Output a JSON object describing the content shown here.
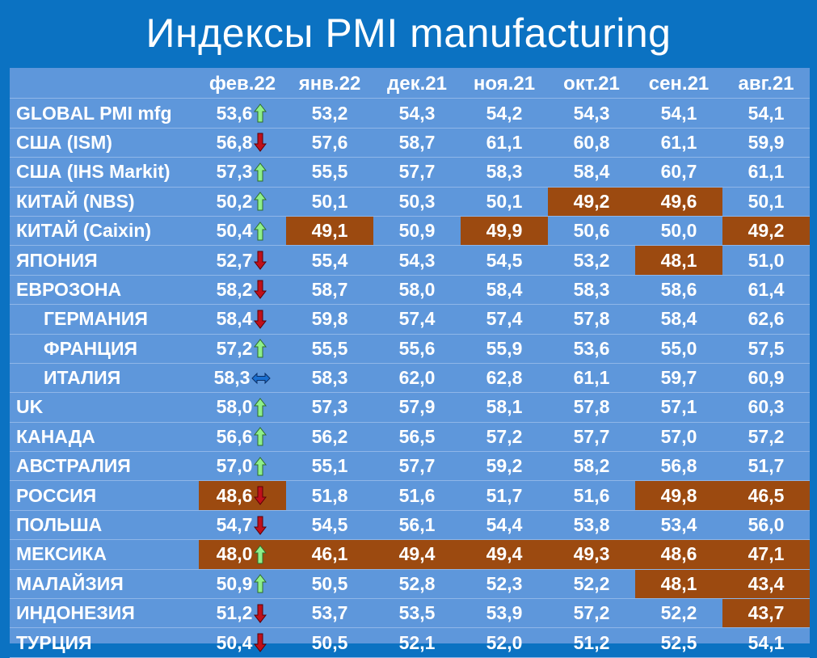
{
  "title": "Индексы PMI manufacturing",
  "colors": {
    "background": "#0b72c2",
    "panel": "#5e97db",
    "highlight": "#9c4a10",
    "up": "#8ef08a",
    "down": "#c0101a",
    "flat": "#1a6fd0"
  },
  "chart_data": {
    "type": "table",
    "title": "Индексы PMI manufacturing",
    "columns": [
      "фев.22",
      "янв.22",
      "дек.21",
      "ноя.21",
      "окт.21",
      "сен.21",
      "авг.21"
    ],
    "rows": [
      {
        "name": "GLOBAL PMI mfg",
        "indent": false,
        "trend": "up",
        "values": [
          "53,6",
          "53,2",
          "54,3",
          "54,2",
          "54,3",
          "54,1",
          "54,1"
        ],
        "highlight": [
          false,
          false,
          false,
          false,
          false,
          false,
          false
        ]
      },
      {
        "name": "США (ISM)",
        "indent": false,
        "trend": "down",
        "values": [
          "56,8",
          "57,6",
          "58,7",
          "61,1",
          "60,8",
          "61,1",
          "59,9"
        ],
        "highlight": [
          false,
          false,
          false,
          false,
          false,
          false,
          false
        ]
      },
      {
        "name": "США (IHS Markit)",
        "indent": false,
        "trend": "up",
        "values": [
          "57,3",
          "55,5",
          "57,7",
          "58,3",
          "58,4",
          "60,7",
          "61,1"
        ],
        "highlight": [
          false,
          false,
          false,
          false,
          false,
          false,
          false
        ]
      },
      {
        "name": "КИТАЙ (NBS)",
        "indent": false,
        "trend": "up",
        "values": [
          "50,2",
          "50,1",
          "50,3",
          "50,1",
          "49,2",
          "49,6",
          "50,1"
        ],
        "highlight": [
          false,
          false,
          false,
          false,
          true,
          true,
          false
        ]
      },
      {
        "name": "КИТАЙ (Caixin)",
        "indent": false,
        "trend": "up",
        "values": [
          "50,4",
          "49,1",
          "50,9",
          "49,9",
          "50,6",
          "50,0",
          "49,2"
        ],
        "highlight": [
          false,
          true,
          false,
          true,
          false,
          false,
          true
        ]
      },
      {
        "name": "ЯПОНИЯ",
        "indent": false,
        "trend": "down",
        "values": [
          "52,7",
          "55,4",
          "54,3",
          "54,5",
          "53,2",
          "48,1",
          "51,0"
        ],
        "highlight": [
          false,
          false,
          false,
          false,
          false,
          true,
          false
        ]
      },
      {
        "name": "ЕВРОЗОНА",
        "indent": false,
        "trend": "down",
        "values": [
          "58,2",
          "58,7",
          "58,0",
          "58,4",
          "58,3",
          "58,6",
          "61,4"
        ],
        "highlight": [
          false,
          false,
          false,
          false,
          false,
          false,
          false
        ]
      },
      {
        "name": "ГЕРМАНИЯ",
        "indent": true,
        "trend": "down",
        "values": [
          "58,4",
          "59,8",
          "57,4",
          "57,4",
          "57,8",
          "58,4",
          "62,6"
        ],
        "highlight": [
          false,
          false,
          false,
          false,
          false,
          false,
          false
        ]
      },
      {
        "name": "ФРАНЦИЯ",
        "indent": true,
        "trend": "up",
        "values": [
          "57,2",
          "55,5",
          "55,6",
          "55,9",
          "53,6",
          "55,0",
          "57,5"
        ],
        "highlight": [
          false,
          false,
          false,
          false,
          false,
          false,
          false
        ]
      },
      {
        "name": "ИТАЛИЯ",
        "indent": true,
        "trend": "flat",
        "values": [
          "58,3",
          "58,3",
          "62,0",
          "62,8",
          "61,1",
          "59,7",
          "60,9"
        ],
        "highlight": [
          false,
          false,
          false,
          false,
          false,
          false,
          false
        ]
      },
      {
        "name": "UK",
        "indent": false,
        "trend": "up",
        "values": [
          "58,0",
          "57,3",
          "57,9",
          "58,1",
          "57,8",
          "57,1",
          "60,3"
        ],
        "highlight": [
          false,
          false,
          false,
          false,
          false,
          false,
          false
        ]
      },
      {
        "name": "КАНАДА",
        "indent": false,
        "trend": "up",
        "values": [
          "56,6",
          "56,2",
          "56,5",
          "57,2",
          "57,7",
          "57,0",
          "57,2"
        ],
        "highlight": [
          false,
          false,
          false,
          false,
          false,
          false,
          false
        ]
      },
      {
        "name": "АВСТРАЛИЯ",
        "indent": false,
        "trend": "up",
        "values": [
          "57,0",
          "55,1",
          "57,7",
          "59,2",
          "58,2",
          "56,8",
          "51,7"
        ],
        "highlight": [
          false,
          false,
          false,
          false,
          false,
          false,
          false
        ]
      },
      {
        "name": "РОССИЯ",
        "indent": false,
        "trend": "down",
        "values": [
          "48,6",
          "51,8",
          "51,6",
          "51,7",
          "51,6",
          "49,8",
          "46,5"
        ],
        "highlight": [
          true,
          false,
          false,
          false,
          false,
          true,
          true
        ]
      },
      {
        "name": "ПОЛЬША",
        "indent": false,
        "trend": "down",
        "values": [
          "54,7",
          "54,5",
          "56,1",
          "54,4",
          "53,8",
          "53,4",
          "56,0"
        ],
        "highlight": [
          false,
          false,
          false,
          false,
          false,
          false,
          false
        ]
      },
      {
        "name": "МЕКСИКА",
        "indent": false,
        "trend": "up",
        "values": [
          "48,0",
          "46,1",
          "49,4",
          "49,4",
          "49,3",
          "48,6",
          "47,1"
        ],
        "highlight": [
          true,
          true,
          true,
          true,
          true,
          true,
          true
        ]
      },
      {
        "name": "МАЛАЙЗИЯ",
        "indent": false,
        "trend": "up",
        "values": [
          "50,9",
          "50,5",
          "52,8",
          "52,3",
          "52,2",
          "48,1",
          "43,4"
        ],
        "highlight": [
          false,
          false,
          false,
          false,
          false,
          true,
          true
        ]
      },
      {
        "name": "ИНДОНЕЗИЯ",
        "indent": false,
        "trend": "down",
        "values": [
          "51,2",
          "53,7",
          "53,5",
          "53,9",
          "57,2",
          "52,2",
          "43,7"
        ],
        "highlight": [
          false,
          false,
          false,
          false,
          false,
          false,
          true
        ]
      },
      {
        "name": "ТУРЦИЯ",
        "indent": false,
        "trend": "down",
        "values": [
          "50,4",
          "50,5",
          "52,1",
          "52,0",
          "51,2",
          "52,5",
          "54,1"
        ],
        "highlight": [
          false,
          false,
          false,
          false,
          false,
          false,
          false
        ]
      }
    ]
  }
}
